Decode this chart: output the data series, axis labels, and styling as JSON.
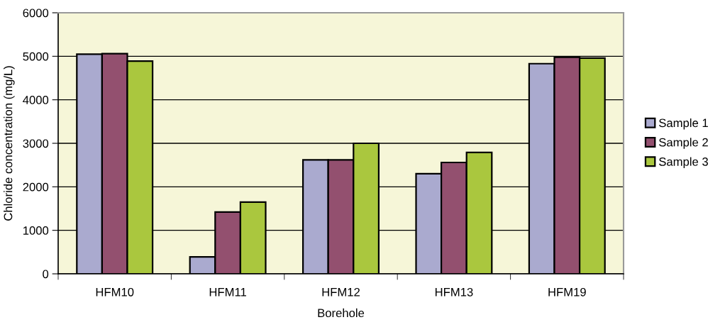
{
  "chart_data": {
    "type": "bar",
    "xlabel": "Borehole",
    "ylabel": "Chloride concentration (mg/L)",
    "categories": [
      "HFM10",
      "HFM11",
      "HFM12",
      "HFM13",
      "HFM19"
    ],
    "series": [
      {
        "name": "Sample 1",
        "color": "#aaaacf",
        "values": [
          5050,
          390,
          2620,
          2300,
          4830
        ]
      },
      {
        "name": "Sample 2",
        "color": "#93506f",
        "values": [
          5060,
          1420,
          2620,
          2560,
          4980
        ]
      },
      {
        "name": "Sample 3",
        "color": "#aac73e",
        "values": [
          4890,
          1650,
          3000,
          2790,
          4960
        ]
      }
    ],
    "ylim": [
      0,
      6000
    ],
    "yticks": [
      0,
      1000,
      2000,
      3000,
      4000,
      5000,
      6000
    ],
    "grid": "y",
    "legend": "right"
  }
}
